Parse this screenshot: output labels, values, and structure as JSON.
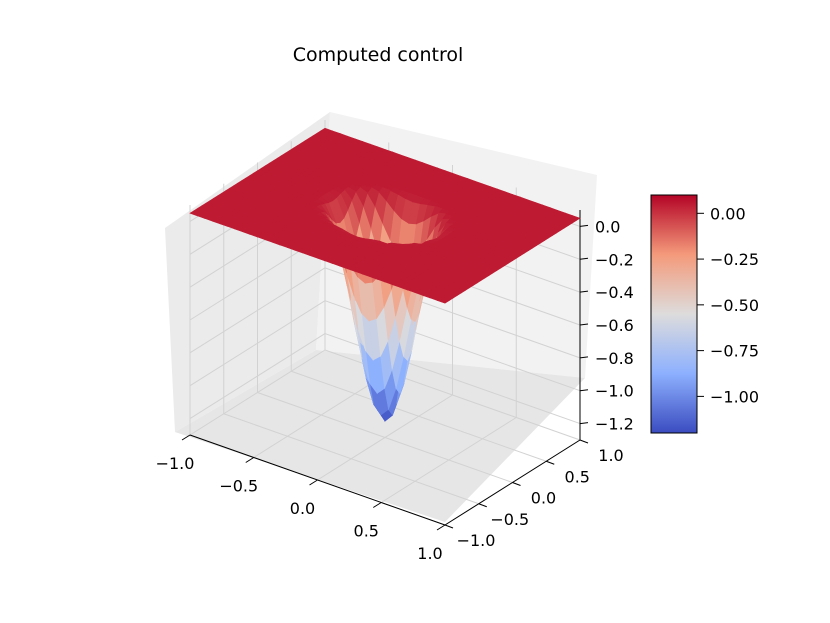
{
  "chart_data": {
    "type": "surface3d",
    "title": "Computed control",
    "xlabel": "",
    "ylabel": "",
    "zlabel": "",
    "xlim": [
      -1.0,
      1.0
    ],
    "ylim": [
      -1.0,
      1.0
    ],
    "zlim": [
      -1.3,
      0.1
    ],
    "x_ticks": [
      "−1.0",
      "−0.5",
      "0.0",
      "0.5",
      "1.0"
    ],
    "y_ticks": [
      "−1.0",
      "−0.5",
      "0.0",
      "0.5",
      "1.0"
    ],
    "z_ticks": [
      "−1.2",
      "−1.0",
      "−0.8",
      "−0.6",
      "−0.4",
      "−0.2",
      "0.0"
    ],
    "surface": {
      "shape": "radial well centered at origin",
      "flat_level": 0.05,
      "min_value": -1.2,
      "well_radius": 0.45
    },
    "colormap": "coolwarm",
    "colorbar": {
      "ticks": [
        "0.00",
        "−0.25",
        "−0.50",
        "−0.75",
        "−1.00"
      ],
      "range": [
        -1.2,
        0.1
      ]
    },
    "grid": true
  }
}
